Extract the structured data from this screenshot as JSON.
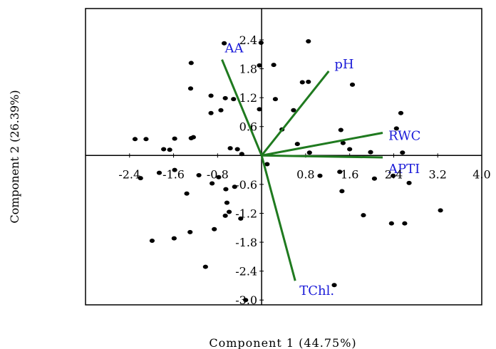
{
  "chart_data": {
    "type": "scatter",
    "title": "",
    "xlabel": "Component 1 (44.75%)",
    "ylabel": "Component 2 (26.39%)",
    "xlim": [
      -3.2,
      4.0
    ],
    "ylim": [
      -3.1,
      3.05
    ],
    "x_ticks": [
      -2.4,
      -1.6,
      -0.8,
      0.8,
      1.6,
      2.4,
      3.2,
      4.0
    ],
    "x_tick_labels": [
      "-2.4",
      "-1.6",
      "-0.8",
      "0.8",
      "1.6",
      "2.4",
      "3.2",
      "4.0"
    ],
    "y_ticks": [
      2.4,
      1.8,
      1.2,
      0.6,
      -0.6,
      -1.2,
      -1.8,
      -2.4,
      -3.0
    ],
    "y_tick_labels": [
      "2.4",
      "1.8",
      "1.2",
      "0.6",
      "-0.6",
      "-1.2",
      "-1.8",
      "-2.4",
      "-3.0"
    ],
    "grid": false,
    "colors": {
      "points": "#000000",
      "vectors": "#1f7a1f",
      "vector_labels": "#1a1ad8"
    },
    "loadings": [
      {
        "name": "AA",
        "x": -0.72,
        "y": 1.99
      },
      {
        "name": "pH",
        "x": 1.22,
        "y": 1.75
      },
      {
        "name": "RWC",
        "x": 2.2,
        "y": 0.47
      },
      {
        "name": "APTI",
        "x": 2.2,
        "y": -0.04
      },
      {
        "name": "TChl.",
        "x": 0.61,
        "y": -2.6
      }
    ],
    "points": [
      {
        "x": -0.68,
        "y": 2.33
      },
      {
        "x": -0.01,
        "y": 2.34
      },
      {
        "x": 0.85,
        "y": 2.37
      },
      {
        "x": -1.28,
        "y": 1.92
      },
      {
        "x": -0.04,
        "y": 1.87
      },
      {
        "x": 0.22,
        "y": 1.88
      },
      {
        "x": 0.74,
        "y": 1.52
      },
      {
        "x": 0.85,
        "y": 1.53
      },
      {
        "x": 1.65,
        "y": 1.47
      },
      {
        "x": -1.29,
        "y": 1.39
      },
      {
        "x": -0.92,
        "y": 1.24
      },
      {
        "x": -0.66,
        "y": 1.19
      },
      {
        "x": -0.51,
        "y": 1.17
      },
      {
        "x": 0.25,
        "y": 1.17
      },
      {
        "x": -0.74,
        "y": 0.94
      },
      {
        "x": -0.92,
        "y": 0.88
      },
      {
        "x": -0.04,
        "y": 0.96
      },
      {
        "x": 0.58,
        "y": 0.94
      },
      {
        "x": 2.53,
        "y": 0.88
      },
      {
        "x": 2.45,
        "y": 0.56
      },
      {
        "x": 0.37,
        "y": 0.54
      },
      {
        "x": 1.44,
        "y": 0.53
      },
      {
        "x": -2.3,
        "y": 0.34
      },
      {
        "x": -2.1,
        "y": 0.34
      },
      {
        "x": -1.58,
        "y": 0.35
      },
      {
        "x": -1.28,
        "y": 0.36
      },
      {
        "x": -1.24,
        "y": 0.38
      },
      {
        "x": 0.65,
        "y": 0.24
      },
      {
        "x": 1.48,
        "y": 0.26
      },
      {
        "x": -1.78,
        "y": 0.13
      },
      {
        "x": -1.67,
        "y": 0.12
      },
      {
        "x": -0.57,
        "y": 0.15
      },
      {
        "x": -0.44,
        "y": 0.13
      },
      {
        "x": -0.36,
        "y": 0.03
      },
      {
        "x": 0.87,
        "y": 0.06
      },
      {
        "x": 1.6,
        "y": 0.13
      },
      {
        "x": 1.98,
        "y": 0.07
      },
      {
        "x": 2.56,
        "y": 0.06
      },
      {
        "x": 0.1,
        "y": -0.18
      },
      {
        "x": -2.2,
        "y": -0.47
      },
      {
        "x": -1.58,
        "y": -0.3
      },
      {
        "x": -1.86,
        "y": -0.36
      },
      {
        "x": -1.14,
        "y": -0.41
      },
      {
        "x": -0.78,
        "y": -0.45
      },
      {
        "x": -0.9,
        "y": -0.58
      },
      {
        "x": -0.65,
        "y": -0.7
      },
      {
        "x": -0.49,
        "y": -0.65
      },
      {
        "x": -1.36,
        "y": -0.79
      },
      {
        "x": 1.06,
        "y": -0.42
      },
      {
        "x": 1.42,
        "y": -0.34
      },
      {
        "x": 2.05,
        "y": -0.48
      },
      {
        "x": 2.39,
        "y": -0.42
      },
      {
        "x": 2.68,
        "y": -0.57
      },
      {
        "x": 1.46,
        "y": -0.74
      },
      {
        "x": -0.63,
        "y": -0.98
      },
      {
        "x": -0.59,
        "y": -1.17
      },
      {
        "x": -0.66,
        "y": -1.25
      },
      {
        "x": -0.38,
        "y": -1.31
      },
      {
        "x": -0.86,
        "y": -1.53
      },
      {
        "x": -1.3,
        "y": -1.59
      },
      {
        "x": 1.85,
        "y": -1.24
      },
      {
        "x": 2.36,
        "y": -1.41
      },
      {
        "x": 2.6,
        "y": -1.41
      },
      {
        "x": 3.25,
        "y": -1.14
      },
      {
        "x": -1.59,
        "y": -1.72
      },
      {
        "x": -1.99,
        "y": -1.77
      },
      {
        "x": -1.02,
        "y": -2.31
      },
      {
        "x": -0.29,
        "y": -3.0
      },
      {
        "x": 1.32,
        "y": -2.69
      }
    ]
  }
}
